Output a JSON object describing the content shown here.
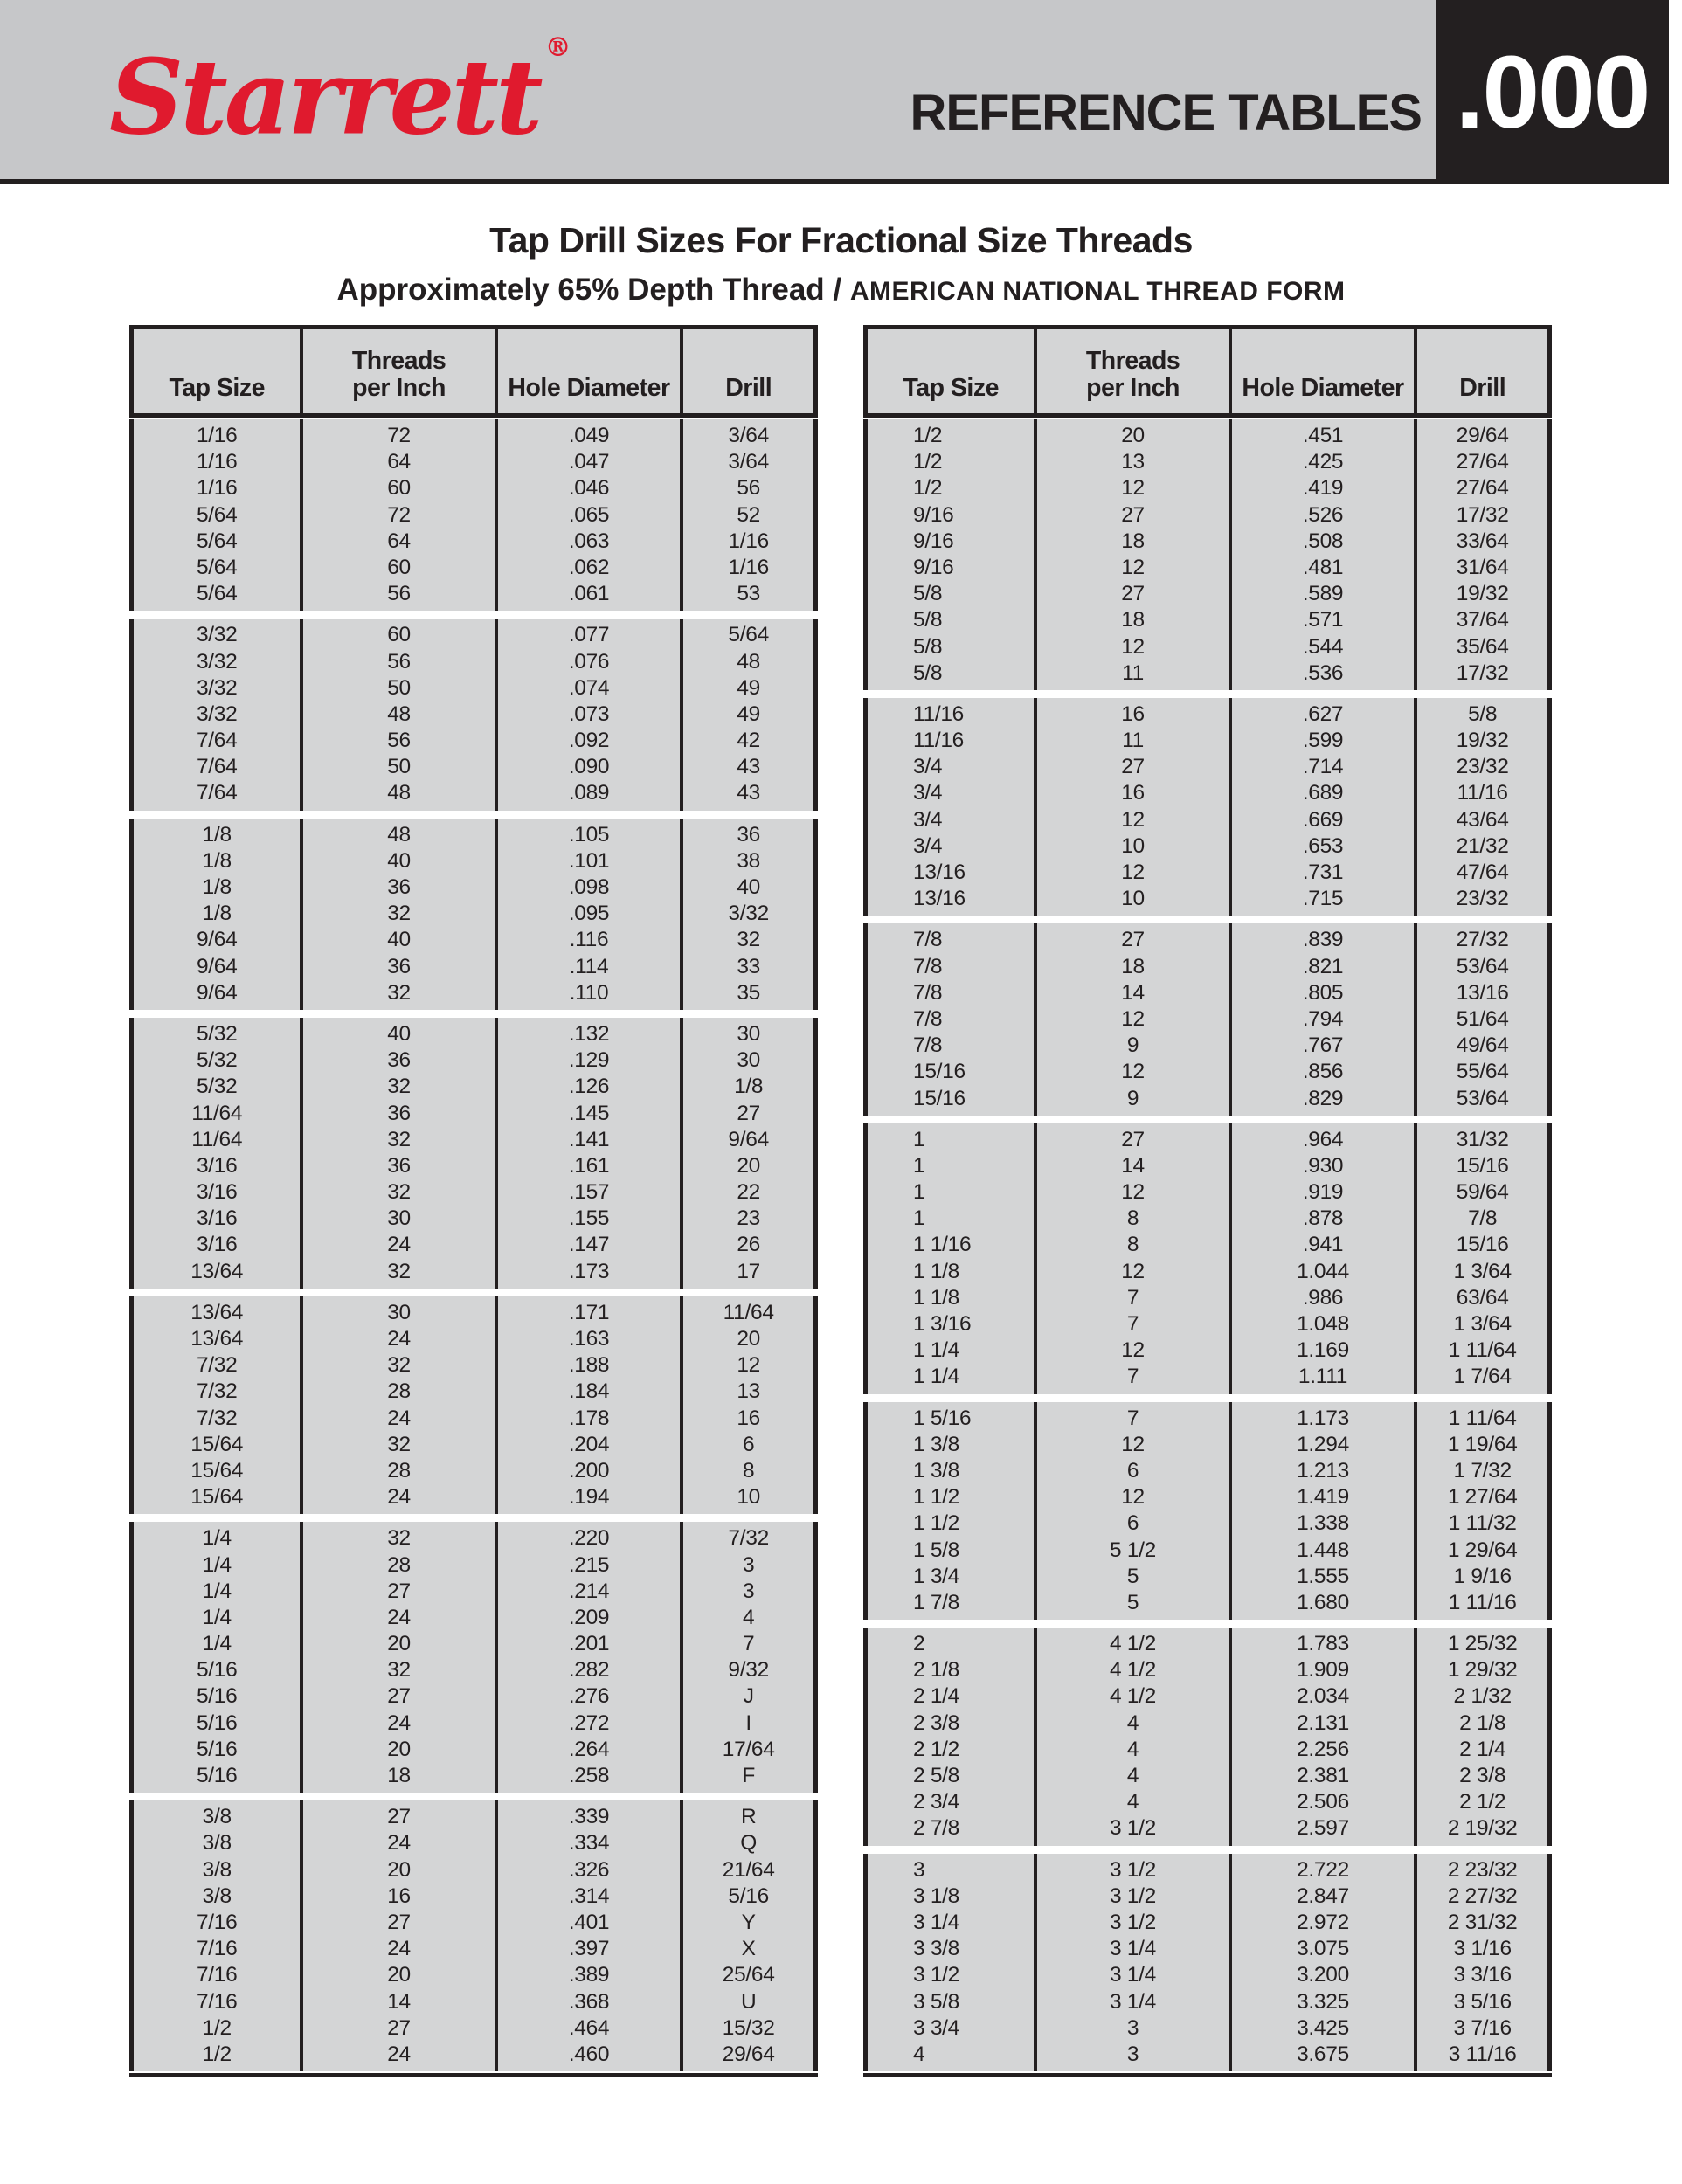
{
  "header": {
    "logo_text": "Starrett",
    "registered_mark": "®",
    "banner_title": "REFERENCE TABLES",
    "page_code": ".000"
  },
  "title": "Tap Drill Sizes For Fractional Size Threads",
  "subtitle": {
    "main": "Approximately 65% Depth Thread / ",
    "caps": "AMERICAN NATIONAL THREAD FORM"
  },
  "colors": {
    "brand_red": "#e01a2e",
    "banner_gray": "#c6c7c9",
    "table_gray": "#d4d5d6",
    "ink_black": "#231f20"
  },
  "columns": [
    "Tap Size",
    "Threads\nper Inch",
    "Hole Diameter",
    "Drill"
  ],
  "tables": {
    "left": {
      "groups": [
        [
          [
            "1/16",
            "72",
            ".049",
            "3/64"
          ],
          [
            "1/16",
            "64",
            ".047",
            "3/64"
          ],
          [
            "1/16",
            "60",
            ".046",
            "56"
          ],
          [
            "5/64",
            "72",
            ".065",
            "52"
          ],
          [
            "5/64",
            "64",
            ".063",
            "1/16"
          ],
          [
            "5/64",
            "60",
            ".062",
            "1/16"
          ],
          [
            "5/64",
            "56",
            ".061",
            "53"
          ]
        ],
        [
          [
            "3/32",
            "60",
            ".077",
            "5/64"
          ],
          [
            "3/32",
            "56",
            ".076",
            "48"
          ],
          [
            "3/32",
            "50",
            ".074",
            "49"
          ],
          [
            "3/32",
            "48",
            ".073",
            "49"
          ],
          [
            "7/64",
            "56",
            ".092",
            "42"
          ],
          [
            "7/64",
            "50",
            ".090",
            "43"
          ],
          [
            "7/64",
            "48",
            ".089",
            "43"
          ]
        ],
        [
          [
            "1/8",
            "48",
            ".105",
            "36"
          ],
          [
            "1/8",
            "40",
            ".101",
            "38"
          ],
          [
            "1/8",
            "36",
            ".098",
            "40"
          ],
          [
            "1/8",
            "32",
            ".095",
            "3/32"
          ],
          [
            "9/64",
            "40",
            ".116",
            "32"
          ],
          [
            "9/64",
            "36",
            ".114",
            "33"
          ],
          [
            "9/64",
            "32",
            ".110",
            "35"
          ]
        ],
        [
          [
            "5/32",
            "40",
            ".132",
            "30"
          ],
          [
            "5/32",
            "36",
            ".129",
            "30"
          ],
          [
            "5/32",
            "32",
            ".126",
            "1/8"
          ],
          [
            "11/64",
            "36",
            ".145",
            "27"
          ],
          [
            "11/64",
            "32",
            ".141",
            "9/64"
          ],
          [
            "3/16",
            "36",
            ".161",
            "20"
          ],
          [
            "3/16",
            "32",
            ".157",
            "22"
          ],
          [
            "3/16",
            "30",
            ".155",
            "23"
          ],
          [
            "3/16",
            "24",
            ".147",
            "26"
          ],
          [
            "13/64",
            "32",
            ".173",
            "17"
          ]
        ],
        [
          [
            "13/64",
            "30",
            ".171",
            "11/64"
          ],
          [
            "13/64",
            "24",
            ".163",
            "20"
          ],
          [
            "7/32",
            "32",
            ".188",
            "12"
          ],
          [
            "7/32",
            "28",
            ".184",
            "13"
          ],
          [
            "7/32",
            "24",
            ".178",
            "16"
          ],
          [
            "15/64",
            "32",
            ".204",
            "6"
          ],
          [
            "15/64",
            "28",
            ".200",
            "8"
          ],
          [
            "15/64",
            "24",
            ".194",
            "10"
          ]
        ],
        [
          [
            "1/4",
            "32",
            ".220",
            "7/32"
          ],
          [
            "1/4",
            "28",
            ".215",
            "3"
          ],
          [
            "1/4",
            "27",
            ".214",
            "3"
          ],
          [
            "1/4",
            "24",
            ".209",
            "4"
          ],
          [
            "1/4",
            "20",
            ".201",
            "7"
          ],
          [
            "5/16",
            "32",
            ".282",
            "9/32"
          ],
          [
            "5/16",
            "27",
            ".276",
            "J"
          ],
          [
            "5/16",
            "24",
            ".272",
            "I"
          ],
          [
            "5/16",
            "20",
            ".264",
            "17/64"
          ],
          [
            "5/16",
            "18",
            ".258",
            "F"
          ]
        ],
        [
          [
            "3/8",
            "27",
            ".339",
            "R"
          ],
          [
            "3/8",
            "24",
            ".334",
            "Q"
          ],
          [
            "3/8",
            "20",
            ".326",
            "21/64"
          ],
          [
            "3/8",
            "16",
            ".314",
            "5/16"
          ],
          [
            "7/16",
            "27",
            ".401",
            "Y"
          ],
          [
            "7/16",
            "24",
            ".397",
            "X"
          ],
          [
            "7/16",
            "20",
            ".389",
            "25/64"
          ],
          [
            "7/16",
            "14",
            ".368",
            "U"
          ],
          [
            "1/2",
            "27",
            ".464",
            "15/32"
          ],
          [
            "1/2",
            "24",
            ".460",
            "29/64"
          ]
        ]
      ]
    },
    "right": {
      "groups": [
        [
          [
            "1/2",
            "20",
            ".451",
            "29/64"
          ],
          [
            "1/2",
            "13",
            ".425",
            "27/64"
          ],
          [
            "1/2",
            "12",
            ".419",
            "27/64"
          ],
          [
            "9/16",
            "27",
            ".526",
            "17/32"
          ],
          [
            "9/16",
            "18",
            ".508",
            "33/64"
          ],
          [
            "9/16",
            "12",
            ".481",
            "31/64"
          ],
          [
            "5/8",
            "27",
            ".589",
            "19/32"
          ],
          [
            "5/8",
            "18",
            ".571",
            "37/64"
          ],
          [
            "5/8",
            "12",
            ".544",
            "35/64"
          ],
          [
            "5/8",
            "11",
            ".536",
            "17/32"
          ]
        ],
        [
          [
            "11/16",
            "16",
            ".627",
            "5/8"
          ],
          [
            "11/16",
            "11",
            ".599",
            "19/32"
          ],
          [
            "3/4",
            "27",
            ".714",
            "23/32"
          ],
          [
            "3/4",
            "16",
            ".689",
            "11/16"
          ],
          [
            "3/4",
            "12",
            ".669",
            "43/64"
          ],
          [
            "3/4",
            "10",
            ".653",
            "21/32"
          ],
          [
            "13/16",
            "12",
            ".731",
            "47/64"
          ],
          [
            "13/16",
            "10",
            ".715",
            "23/32"
          ]
        ],
        [
          [
            "7/8",
            "27",
            ".839",
            "27/32"
          ],
          [
            "7/8",
            "18",
            ".821",
            "53/64"
          ],
          [
            "7/8",
            "14",
            ".805",
            "13/16"
          ],
          [
            "7/8",
            "12",
            ".794",
            "51/64"
          ],
          [
            "7/8",
            "9",
            ".767",
            "49/64"
          ],
          [
            "15/16",
            "12",
            ".856",
            "55/64"
          ],
          [
            "15/16",
            "9",
            ".829",
            "53/64"
          ]
        ],
        [
          [
            "1",
            "27",
            ".964",
            "31/32"
          ],
          [
            "1",
            "14",
            ".930",
            "15/16"
          ],
          [
            "1",
            "12",
            ".919",
            "59/64"
          ],
          [
            "1",
            "8",
            ".878",
            "7/8"
          ],
          [
            "1 1/16",
            "8",
            ".941",
            "15/16"
          ],
          [
            "1 1/8",
            "12",
            "1.044",
            "1 3/64"
          ],
          [
            "1 1/8",
            "7",
            ".986",
            "63/64"
          ],
          [
            "1 3/16",
            "7",
            "1.048",
            "1 3/64"
          ],
          [
            "1 1/4",
            "12",
            "1.169",
            "1 11/64"
          ],
          [
            "1 1/4",
            "7",
            "1.111",
            "1 7/64"
          ]
        ],
        [
          [
            "1 5/16",
            "7",
            "1.173",
            "1 11/64"
          ],
          [
            "1 3/8",
            "12",
            "1.294",
            "1 19/64"
          ],
          [
            "1 3/8",
            "6",
            "1.213",
            "1 7/32"
          ],
          [
            "1 1/2",
            "12",
            "1.419",
            "1 27/64"
          ],
          [
            "1 1/2",
            "6",
            "1.338",
            "1 11/32"
          ],
          [
            "1 5/8",
            "5 1/2",
            "1.448",
            "1 29/64"
          ],
          [
            "1 3/4",
            "5",
            "1.555",
            "1 9/16"
          ],
          [
            "1 7/8",
            "5",
            "1.680",
            "1 11/16"
          ]
        ],
        [
          [
            "2",
            "4 1/2",
            "1.783",
            "1 25/32"
          ],
          [
            "2 1/8",
            "4 1/2",
            "1.909",
            "1 29/32"
          ],
          [
            "2 1/4",
            "4 1/2",
            "2.034",
            "2 1/32"
          ],
          [
            "2 3/8",
            "4",
            "2.131",
            "2 1/8"
          ],
          [
            "2 1/2",
            "4",
            "2.256",
            "2 1/4"
          ],
          [
            "2 5/8",
            "4",
            "2.381",
            "2 3/8"
          ],
          [
            "2 3/4",
            "4",
            "2.506",
            "2 1/2"
          ],
          [
            "2 7/8",
            "3 1/2",
            "2.597",
            "2 19/32"
          ]
        ],
        [
          [
            "3",
            "3 1/2",
            "2.722",
            "2 23/32"
          ],
          [
            "3 1/8",
            "3 1/2",
            "2.847",
            "2 27/32"
          ],
          [
            "3 1/4",
            "3 1/2",
            "2.972",
            "2 31/32"
          ],
          [
            "3 3/8",
            "3 1/4",
            "3.075",
            "3 1/16"
          ],
          [
            "3 1/2",
            "3 1/4",
            "3.200",
            "3 3/16"
          ],
          [
            "3 5/8",
            "3 1/4",
            "3.325",
            "3 5/16"
          ],
          [
            "3 3/4",
            "3",
            "3.425",
            "3 7/16"
          ],
          [
            "4",
            "3",
            "3.675",
            "3 11/16"
          ]
        ]
      ]
    }
  }
}
